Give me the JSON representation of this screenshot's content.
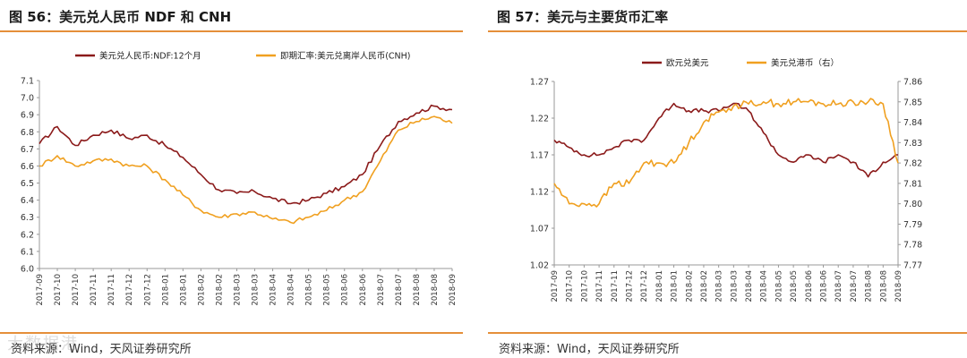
{
  "left": {
    "title": "图 56：美元兑人民币 NDF 和 CNH",
    "source": "资料来源：Wind，天风证券研究所",
    "watermark": "大数据港"
  },
  "right": {
    "title": "图 57：美元与主要货币汇率",
    "source": "资料来源：Wind，天风证券研究所"
  },
  "colors": {
    "accent": "#e58f3a",
    "series_dark": "#8b1a1a",
    "series_orange": "#f0a020"
  },
  "chart_data": [
    {
      "type": "line",
      "x_ticks": [
        "2017-09",
        "2017-10",
        "2017-10",
        "2017-11",
        "2017-11",
        "2017-12",
        "2017-12",
        "2018-01",
        "2018-01",
        "2018-02",
        "2018-02",
        "2018-03",
        "2018-03",
        "2018-04",
        "2018-04",
        "2018-05",
        "2018-05",
        "2018-06",
        "2018-06",
        "2018-07",
        "2018-07",
        "2018-08",
        "2018-08",
        "2018-09"
      ],
      "y_ticks": [
        "6.0",
        "6.1",
        "6.2",
        "6.3",
        "6.4",
        "6.5",
        "6.6",
        "6.7",
        "6.8",
        "6.9",
        "7.0",
        "7.1"
      ],
      "ylim": [
        6.0,
        7.1
      ],
      "legend_position": "top",
      "series": [
        {
          "name": "美元兑人民币:NDF:12个月",
          "color": "#8b1a1a",
          "values": [
            6.73,
            6.83,
            6.72,
            6.78,
            6.81,
            6.76,
            6.78,
            6.72,
            6.65,
            6.55,
            6.46,
            6.44,
            6.45,
            6.41,
            6.38,
            6.4,
            6.44,
            6.48,
            6.55,
            6.72,
            6.86,
            6.91,
            6.95,
            6.93
          ]
        },
        {
          "name": "即期汇率:美元兑离岸人民币(CNH)",
          "color": "#f0a020",
          "values": [
            6.6,
            6.66,
            6.6,
            6.63,
            6.64,
            6.6,
            6.6,
            6.52,
            6.43,
            6.34,
            6.3,
            6.32,
            6.33,
            6.29,
            6.27,
            6.3,
            6.34,
            6.4,
            6.45,
            6.63,
            6.81,
            6.86,
            6.89,
            6.85
          ]
        }
      ]
    },
    {
      "type": "line",
      "x_ticks": [
        "2017-09",
        "2017-10",
        "2017-10",
        "2017-11",
        "2017-11",
        "2017-12",
        "2017-12",
        "2018-01",
        "2018-01",
        "2018-02",
        "2018-02",
        "2018-03",
        "2018-03",
        "2018-04",
        "2018-04",
        "2018-05",
        "2018-05",
        "2018-06",
        "2018-06",
        "2018-07",
        "2018-07",
        "2018-08",
        "2018-08",
        "2018-09"
      ],
      "y_ticks": [
        "1.02",
        "1.07",
        "1.12",
        "1.17",
        "1.22",
        "1.27"
      ],
      "ylim": [
        1.02,
        1.27
      ],
      "y2_ticks": [
        "7.77",
        "7.78",
        "7.79",
        "7.80",
        "7.81",
        "7.82",
        "7.83",
        "7.84",
        "7.85",
        "7.86"
      ],
      "y2lim": [
        7.77,
        7.86
      ],
      "legend_position": "top",
      "series": [
        {
          "name": "欧元兑美元",
          "color": "#8b1a1a",
          "axis": "left",
          "values": [
            1.19,
            1.18,
            1.17,
            1.17,
            1.18,
            1.19,
            1.19,
            1.22,
            1.24,
            1.23,
            1.23,
            1.23,
            1.24,
            1.23,
            1.2,
            1.17,
            1.16,
            1.17,
            1.16,
            1.17,
            1.16,
            1.14,
            1.16,
            1.17
          ]
        },
        {
          "name": "美元兑港币（右）",
          "color": "#f0a020",
          "axis": "right",
          "values": [
            7.81,
            7.8,
            7.8,
            7.8,
            7.81,
            7.81,
            7.82,
            7.82,
            7.82,
            7.83,
            7.84,
            7.845,
            7.848,
            7.849,
            7.85,
            7.849,
            7.85,
            7.85,
            7.849,
            7.849,
            7.85,
            7.85,
            7.849,
            7.82
          ]
        }
      ]
    }
  ]
}
